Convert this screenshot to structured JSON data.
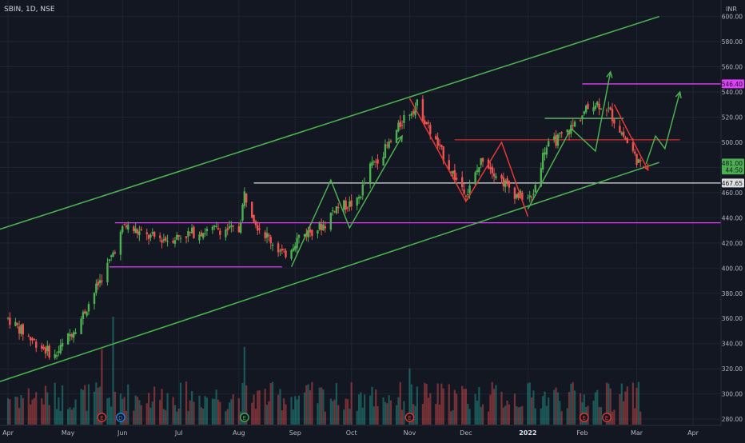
{
  "chart_data": {
    "type": "candlestick",
    "symbol": "SBIN, 1D, NSE",
    "currency": "INR",
    "y_ticks": [
      280,
      300,
      320,
      340,
      360,
      380,
      400,
      420,
      440,
      460,
      480,
      500,
      520,
      540,
      560,
      580,
      600
    ],
    "y_tick_labels": [
      "280.00",
      "300.00",
      "320.00",
      "340.00",
      "360.00",
      "380.00",
      "400.00",
      "420.00",
      "440.00",
      "460.00",
      "480.00",
      "500.00",
      "520.00",
      "540.00",
      "560.00",
      "580.00",
      "600.00"
    ],
    "ylim": [
      275,
      608
    ],
    "x_labels": [
      {
        "label": "Apr",
        "date": "2021-04-01"
      },
      {
        "label": "May",
        "date": "2021-05-03"
      },
      {
        "label": "Jun",
        "date": "2021-06-01"
      },
      {
        "label": "Jul",
        "date": "2021-07-01"
      },
      {
        "label": "Aug",
        "date": "2021-08-02"
      },
      {
        "label": "Sep",
        "date": "2021-09-01"
      },
      {
        "label": "Oct",
        "date": "2021-10-01"
      },
      {
        "label": "Nov",
        "date": "2021-11-01"
      },
      {
        "label": "Dec",
        "date": "2021-12-01"
      },
      {
        "label": "2022",
        "date": "2022-01-03"
      },
      {
        "label": "Feb",
        "date": "2022-02-01"
      },
      {
        "label": "Mar",
        "date": "2022-03-02"
      },
      {
        "label": "Apr",
        "date": "2022-04-01"
      }
    ],
    "price_badges": [
      {
        "label": "546.40",
        "value": 546.4,
        "color": "#e040fb",
        "text_color": "#131722"
      },
      {
        "label": "481.00",
        "value": 483.5,
        "color": "#4caf50",
        "text_color": "#131722"
      },
      {
        "label": "44:50",
        "value": 478.0,
        "color": "#4caf50",
        "text_color": "#131722"
      },
      {
        "label": "467.65",
        "value": 467.65,
        "color": "#e0e0e0",
        "text_color": "#131722"
      }
    ],
    "horizontal_levels": [
      {
        "name": "resistance-546",
        "value": 546.4,
        "from": "2022-02-01",
        "color": "#e040fb"
      },
      {
        "name": "support-436",
        "value": 436,
        "from": "2021-05-28",
        "color": "#e040fb"
      },
      {
        "name": "support-467",
        "value": 467.65,
        "from": "2021-08-10",
        "color": "#e0e0e0"
      },
      {
        "name": "level-502",
        "value": 502,
        "from": "2021-11-25",
        "to": "2022-03-25",
        "color": "#c62828"
      },
      {
        "name": "level-401",
        "value": 401,
        "from": "2021-05-25",
        "to": "2021-08-25",
        "color": "#e040fb"
      },
      {
        "name": "level-519",
        "value": 519,
        "from": "2022-01-12",
        "to": "2022-02-23",
        "color": "#66bb6a"
      }
    ],
    "channel_lines": [
      {
        "name": "channel-upper",
        "points": [
          [
            "2021-04-01",
            433
          ],
          [
            "2022-03-14",
            600
          ]
        ],
        "color": "#4caf50"
      },
      {
        "name": "channel-lower",
        "points": [
          [
            "2021-04-01",
            312
          ],
          [
            "2022-03-14",
            484
          ]
        ],
        "color": "#4caf50"
      }
    ],
    "wave_paths": [
      {
        "name": "wave-green-1",
        "color": "#4caf50",
        "arrow": true,
        "points": [
          [
            "2021-08-30",
            401
          ],
          [
            "2021-09-20",
            470
          ],
          [
            "2021-09-30",
            432
          ],
          [
            "2021-10-28",
            505
          ]
        ]
      },
      {
        "name": "wave-red-1",
        "color": "#e53935",
        "arrow": false,
        "points": [
          [
            "2021-11-01",
            535
          ],
          [
            "2021-12-01",
            453
          ],
          [
            "2021-12-20",
            500
          ],
          [
            "2022-01-03",
            441
          ]
        ]
      },
      {
        "name": "wave-green-2",
        "color": "#4caf50",
        "arrow": true,
        "points": [
          [
            "2022-01-03",
            447
          ],
          [
            "2022-01-26",
            511
          ],
          [
            "2022-02-08",
            493
          ],
          [
            "2022-02-16",
            556
          ]
        ]
      },
      {
        "name": "wave-red-2",
        "color": "#e53935",
        "arrow": true,
        "points": [
          [
            "2022-02-18",
            530
          ],
          [
            "2022-03-08",
            478
          ]
        ]
      },
      {
        "name": "wave-green-3",
        "color": "#4caf50",
        "arrow": true,
        "points": [
          [
            "2022-03-07",
            483
          ],
          [
            "2022-03-12",
            505
          ],
          [
            "2022-03-17",
            495
          ],
          [
            "2022-03-25",
            540
          ]
        ]
      }
    ],
    "anchors": [
      [
        "2021-04-01",
        360
      ],
      [
        "2021-04-13",
        344
      ],
      [
        "2021-04-26",
        330
      ],
      [
        "2021-05-10",
        360
      ],
      [
        "2021-05-25",
        405
      ],
      [
        "2021-06-02",
        434
      ],
      [
        "2021-06-14",
        425
      ],
      [
        "2021-06-25",
        423
      ],
      [
        "2021-07-08",
        428
      ],
      [
        "2021-07-22",
        431
      ],
      [
        "2021-08-02",
        430
      ],
      [
        "2021-08-05",
        459
      ],
      [
        "2021-08-12",
        434
      ],
      [
        "2021-08-26",
        410
      ],
      [
        "2021-09-03",
        425
      ],
      [
        "2021-09-17",
        435
      ],
      [
        "2021-09-22",
        448
      ],
      [
        "2021-10-04",
        452
      ],
      [
        "2021-10-11",
        480
      ],
      [
        "2021-10-22",
        500
      ],
      [
        "2021-10-29",
        520
      ],
      [
        "2021-11-05",
        530
      ],
      [
        "2021-11-15",
        500
      ],
      [
        "2021-11-26",
        470
      ],
      [
        "2021-12-02",
        460
      ],
      [
        "2021-12-10",
        488
      ],
      [
        "2021-12-20",
        470
      ],
      [
        "2021-12-28",
        458
      ],
      [
        "2022-01-05",
        455
      ],
      [
        "2022-01-12",
        495
      ],
      [
        "2022-01-24",
        508
      ],
      [
        "2022-02-01",
        522
      ],
      [
        "2022-02-07",
        532
      ],
      [
        "2022-02-14",
        528
      ],
      [
        "2022-02-23",
        505
      ],
      [
        "2022-02-28",
        492
      ],
      [
        "2022-03-04",
        481
      ]
    ],
    "volume_spikes": [
      {
        "date": "2021-05-27",
        "rel": 1.0
      },
      {
        "date": "2021-05-21",
        "rel": 0.7
      },
      {
        "date": "2021-08-05",
        "rel": 0.72
      },
      {
        "date": "2021-11-01",
        "rel": 0.52
      },
      {
        "date": "2022-02-15",
        "rel": 0.38
      }
    ],
    "event_markers": [
      {
        "date": "2021-05-21",
        "letter": "E",
        "color": "#e53935"
      },
      {
        "date": "2021-05-31",
        "letter": "D",
        "color": "#1e88e5"
      },
      {
        "date": "2021-08-05",
        "letter": "E",
        "color": "#4caf50"
      },
      {
        "date": "2021-11-01",
        "letter": "E",
        "color": "#e53935"
      },
      {
        "date": "2022-02-02",
        "letter": "E",
        "color": "#e53935"
      },
      {
        "date": "2022-02-14",
        "letter": "E",
        "color": "#e53935"
      }
    ],
    "colors": {
      "up": "#26a69a",
      "down": "#ef5350",
      "up_bright": "#4caf50",
      "background": "#131722",
      "grid": "#1f2433",
      "axis_text": "#b2b5be"
    },
    "grid": true
  }
}
